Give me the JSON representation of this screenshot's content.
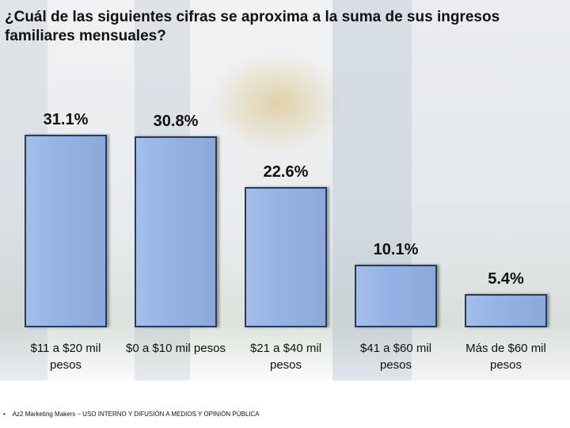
{
  "chart_data": {
    "type": "bar",
    "title": "¿Cuál de las siguientes cifras se aproxima a la suma de sus ingresos familiares mensuales?",
    "categories": [
      "$11 a $20 mil pesos",
      "$0 a $10 mil pesos",
      "$21 a $40 mil pesos",
      "$41 a $60 mil pesos",
      "Más de $60 mil pesos"
    ],
    "values": [
      31.1,
      30.8,
      22.6,
      10.1,
      5.4
    ],
    "value_labels": [
      "31.1%",
      "30.8%",
      "22.6%",
      "10.1%",
      "5.4%"
    ],
    "color": "#95b3e6"
  },
  "footer": "Az2 Marketing Makers – USO INTERNO Y DIFUSIÓN A MEDIOS Y OPINIÓN PÚBLICA"
}
